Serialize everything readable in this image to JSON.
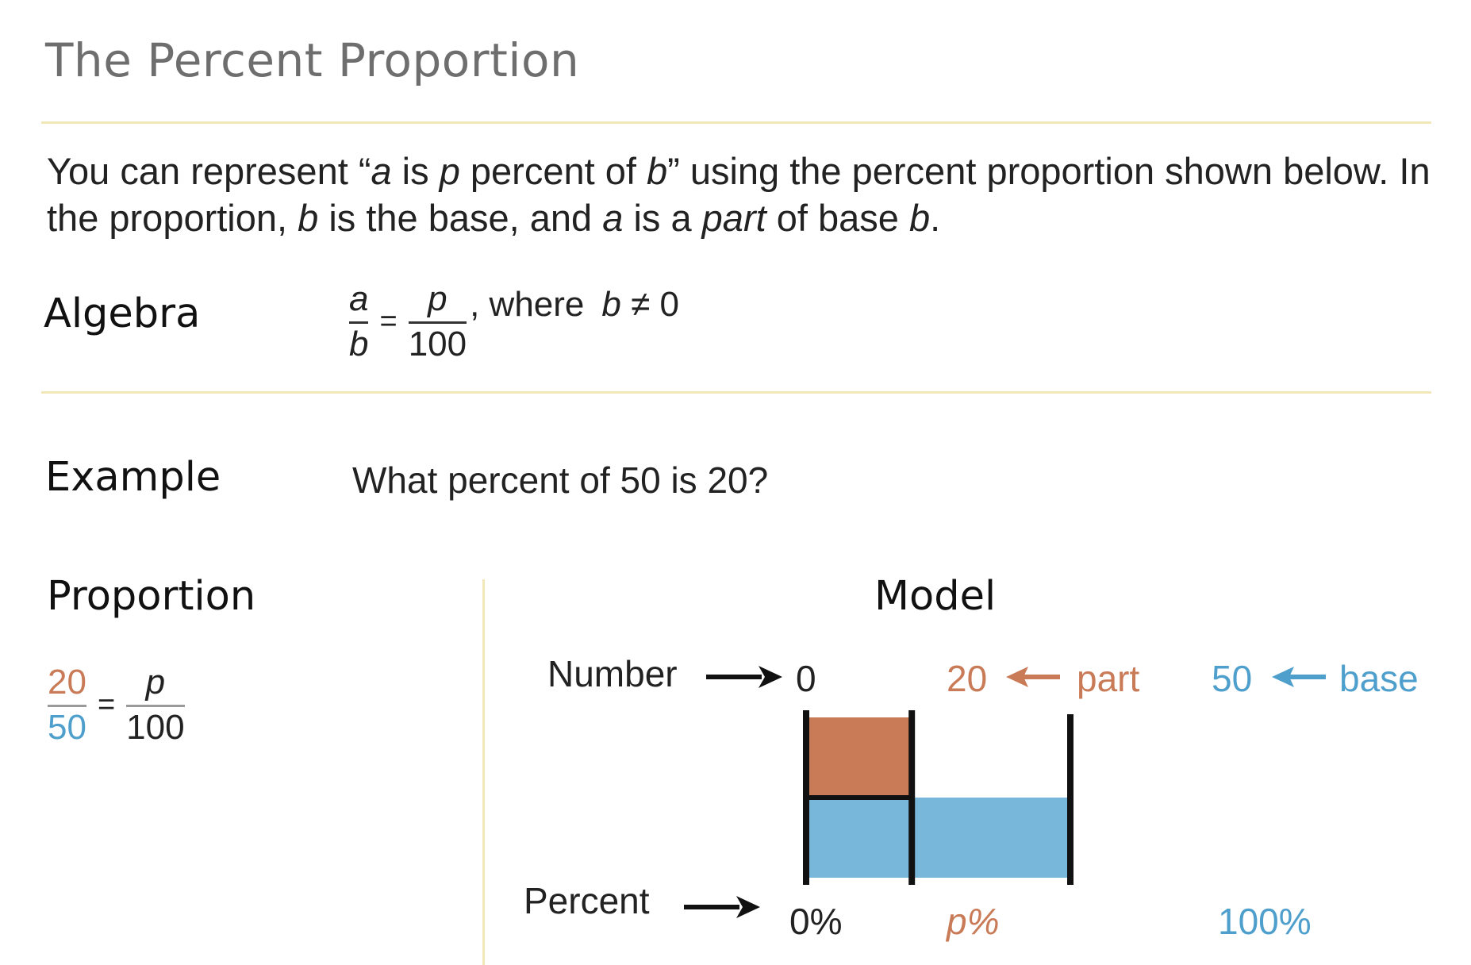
{
  "title": "The Percent Proportion",
  "intro": {
    "t1": "You can represent “",
    "a1": "a",
    "t2": " is ",
    "p1": "p",
    "t3": " percent of ",
    "b1": "b",
    "t4": "” using the percent proportion shown below. In the proportion, ",
    "b2": "b",
    "t5": " is the base, and ",
    "a2": "a",
    "t6": " is a ",
    "part": "part",
    "t7": " of base ",
    "b3": "b",
    "t8": "."
  },
  "algebra": {
    "label": "Algebra",
    "left_num": "a",
    "left_den": "b",
    "equals": "=",
    "right_num": "p",
    "right_den": "100",
    "where": ", where",
    "condition_var": "b",
    "condition_rest": "≠ 0"
  },
  "example": {
    "label": "Example",
    "question": "What percent of 50 is 20?"
  },
  "proportion": {
    "label": "Proportion",
    "left_num": "20",
    "left_den": "50",
    "equals": "=",
    "right_num": "p",
    "right_den": "100"
  },
  "model": {
    "title": "Model",
    "number_label": "Number",
    "percent_label": "Percent",
    "tick_0": "0",
    "tick_part": "20",
    "part_label": "part",
    "tick_base": "50",
    "base_label": "base",
    "pct_0": "0%",
    "pct_p": "p%",
    "pct_100": "100%",
    "part_value": 20,
    "base_value": 50,
    "colors": {
      "part": "#c97a56",
      "base": "#78b6da",
      "part_text": "#c97a56",
      "base_text": "#4f9fcd",
      "divider": "#f1e7b8"
    }
  }
}
